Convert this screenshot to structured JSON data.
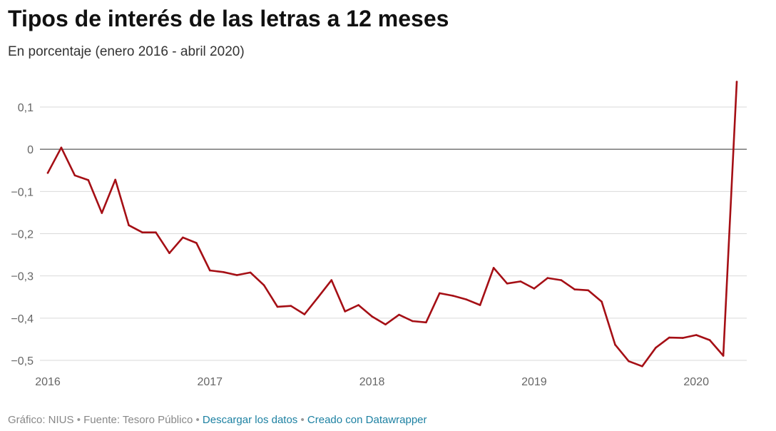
{
  "title": "Tipos de interés de las letras a 12 meses",
  "subtitle": "En porcentaje (enero 2016 - abril 2020)",
  "footer": {
    "chart_by": "Gráfico: NIUS",
    "source": "Fuente: Tesoro Público",
    "separator": "•",
    "download_link": "Descargar los datos",
    "created_with_link": "Creado con Datawrapper"
  },
  "colors": {
    "line": "#a50f15",
    "grid": "#d9d9d9",
    "zero_line": "#333333",
    "tick_text": "#666666",
    "link": "#1d81a2"
  },
  "chart_data": {
    "type": "line",
    "title": "Tipos de interés de las letras a 12 meses",
    "subtitle": "En porcentaje (enero 2016 - abril 2020)",
    "xlabel": "",
    "ylabel": "",
    "xlim": [
      "2016-01",
      "2020-04"
    ],
    "ylim": [
      -0.5,
      0.1
    ],
    "y_ticks": [
      0.1,
      0,
      -0.1,
      -0.2,
      -0.3,
      -0.4,
      -0.5
    ],
    "y_tick_labels": [
      "0,1",
      "0",
      "−0,1",
      "−0,2",
      "−0,3",
      "−0,4",
      "−0,5"
    ],
    "x_ticks": [
      "2016-01",
      "2017-01",
      "2018-01",
      "2019-01",
      "2020-01"
    ],
    "x_tick_labels": [
      "2016",
      "2017",
      "2018",
      "2019",
      "2020"
    ],
    "grid": true,
    "legend": "none",
    "series": [
      {
        "x": [
          "2016-01",
          "2016-02",
          "2016-03",
          "2016-04",
          "2016-05",
          "2016-06",
          "2016-07",
          "2016-08",
          "2016-09",
          "2016-10",
          "2016-11",
          "2016-12",
          "2017-01",
          "2017-02",
          "2017-03",
          "2017-04",
          "2017-05",
          "2017-06",
          "2017-07",
          "2017-08",
          "2017-09",
          "2017-10",
          "2017-11",
          "2017-12",
          "2018-01",
          "2018-02",
          "2018-03",
          "2018-04",
          "2018-05",
          "2018-06",
          "2018-07",
          "2018-08",
          "2018-09",
          "2018-10",
          "2018-11",
          "2018-12",
          "2019-01",
          "2019-02",
          "2019-03",
          "2019-04",
          "2019-05",
          "2019-06",
          "2019-07",
          "2019-08",
          "2019-09",
          "2019-10",
          "2019-11",
          "2019-12",
          "2020-01",
          "2020-02",
          "2020-03",
          "2020-04"
        ],
        "values": [
          -0.056,
          0.004,
          -0.062,
          -0.073,
          -0.151,
          -0.072,
          -0.18,
          -0.197,
          -0.197,
          -0.246,
          -0.209,
          -0.222,
          -0.287,
          -0.291,
          -0.298,
          -0.292,
          -0.322,
          -0.373,
          -0.371,
          -0.391,
          -0.351,
          -0.31,
          -0.384,
          -0.369,
          -0.396,
          -0.415,
          -0.392,
          -0.407,
          -0.41,
          -0.341,
          -0.347,
          -0.356,
          -0.369,
          -0.281,
          -0.318,
          -0.313,
          -0.33,
          -0.305,
          -0.31,
          -0.332,
          -0.334,
          -0.361,
          -0.463,
          -0.502,
          -0.514,
          -0.47,
          -0.446,
          -0.447,
          -0.44,
          -0.452,
          -0.489,
          0.16
        ]
      }
    ]
  }
}
